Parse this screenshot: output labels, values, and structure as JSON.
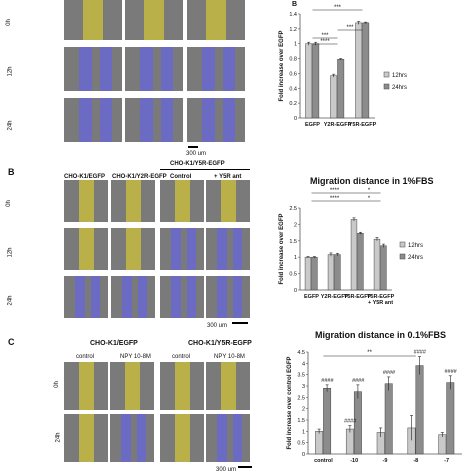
{
  "panelA": {
    "rows": [
      "0h",
      "12h",
      "24h"
    ],
    "scale": "300 um",
    "chart_label": "B"
  },
  "panelB": {
    "label": "B",
    "cols": [
      "CHO-K1/EGFP",
      "CHO-K1/Y2R-EGFP",
      "Control",
      "+ Y5R ant"
    ],
    "group": "CHO-K1/Y5R-EGFP",
    "rows": [
      "0h",
      "12h",
      "24h"
    ],
    "scale": "300 um"
  },
  "panelC": {
    "label": "C",
    "group1": "CHO-K1/EGFP",
    "group2": "CHO-K1/Y5R-EGFP",
    "cols": [
      "control",
      "NPY 10-8M",
      "control",
      "NPY 10-8M"
    ],
    "rows": [
      "0h",
      "24h"
    ],
    "scale": "300 um"
  },
  "colors": {
    "s12": "#c9c9c9",
    "s24": "#8c8c8c",
    "yellow": "#b9b04a",
    "blue": "#6b6bc4",
    "gray": "#7a7a7a"
  },
  "chart_data": [
    {
      "type": "bar",
      "title": "",
      "ylabel": "Fold increase over EGFP",
      "categories": [
        "EGFP",
        "Y2R-EGFP",
        "Y5R-EGFP"
      ],
      "ylim": [
        0,
        1.4
      ],
      "yticks": [
        "0",
        "0.2",
        "0.4",
        "0.6",
        "0.8",
        "1",
        "1.2",
        "1.4"
      ],
      "series": [
        {
          "name": "12hrs",
          "values": [
            1.0,
            0.57,
            1.28
          ]
        },
        {
          "name": "24hrs",
          "values": [
            1.0,
            0.79,
            1.28
          ]
        }
      ],
      "errors": [
        [
          0.02,
          0.02,
          0.02
        ],
        [
          0.02,
          0.01,
          0.01
        ]
      ],
      "significance": [
        "***",
        "***",
        "***",
        "****"
      ],
      "legend": "right"
    },
    {
      "type": "bar",
      "title": "Migration distance in 1%FBS",
      "ylabel": "Fold increase over EGFP",
      "categories": [
        "EGFP",
        "Y2R-EGFP",
        "Y5R-EGFP",
        "Y5R-EGFP + Y5R ant"
      ],
      "ylim": [
        0,
        2.5
      ],
      "yticks": [
        "0",
        "0.5",
        "1",
        "1.5",
        "2",
        "2.5"
      ],
      "series": [
        {
          "name": "12hrs",
          "values": [
            1.0,
            1.08,
            2.15,
            1.55
          ]
        },
        {
          "name": "24hrs",
          "values": [
            1.0,
            1.08,
            1.73,
            1.35
          ]
        }
      ],
      "errors": [
        [
          0.02,
          0.05,
          0.05,
          0.05
        ],
        [
          0.02,
          0.04,
          0.03,
          0.05
        ]
      ],
      "significance": [
        "****",
        "****",
        "*",
        "*"
      ],
      "legend": "right"
    },
    {
      "type": "bar",
      "title": "Migration distance in 0.1%FBS",
      "ylabel": "Fold increase over control EGFP",
      "categories": [
        "control",
        "-10",
        "-9",
        "-8",
        "-7"
      ],
      "ylim": [
        0,
        4.5
      ],
      "yticks": [
        "0",
        "0.5",
        "1",
        "1.5",
        "2",
        "2.5",
        "3",
        "3.5",
        "4",
        "4.5"
      ],
      "series": [
        {
          "name": "",
          "values": [
            1.0,
            1.1,
            0.95,
            1.15,
            0.85
          ]
        },
        {
          "name": "",
          "values": [
            2.9,
            2.75,
            3.1,
            3.9,
            3.15
          ]
        }
      ],
      "errors": [
        [
          0.1,
          0.15,
          0.2,
          0.55,
          0.1
        ],
        [
          0.15,
          0.3,
          0.3,
          0.4,
          0.3
        ]
      ],
      "significance": [
        "####",
        "####",
        "####",
        "####",
        "####",
        "####",
        "**"
      ]
    }
  ]
}
